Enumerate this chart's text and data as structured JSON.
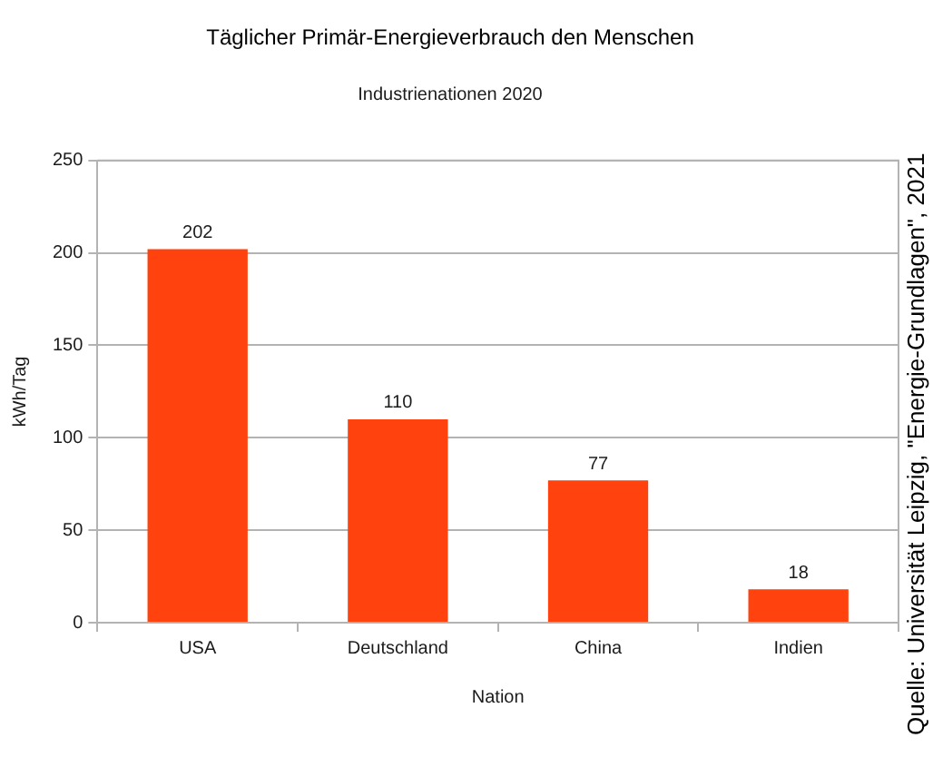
{
  "chart_data": {
    "type": "bar",
    "title": "Täglicher Primär-Energieverbrauch den Menschen",
    "subtitle": "Industrienationen 2020",
    "xlabel": "Nation",
    "ylabel": "kWh/Tag",
    "categories": [
      "USA",
      "Deutschland",
      "China",
      "Indien"
    ],
    "values": [
      202,
      110,
      77,
      18
    ],
    "color": "#ff420e",
    "ylim": [
      0,
      250
    ],
    "yticks": [
      0,
      50,
      100,
      150,
      200,
      250
    ],
    "grid": "y",
    "data_labels": true,
    "annotations": [
      "Quelle: Universität Leipzig, \"Energie-Grundlagen\", 2021"
    ]
  }
}
